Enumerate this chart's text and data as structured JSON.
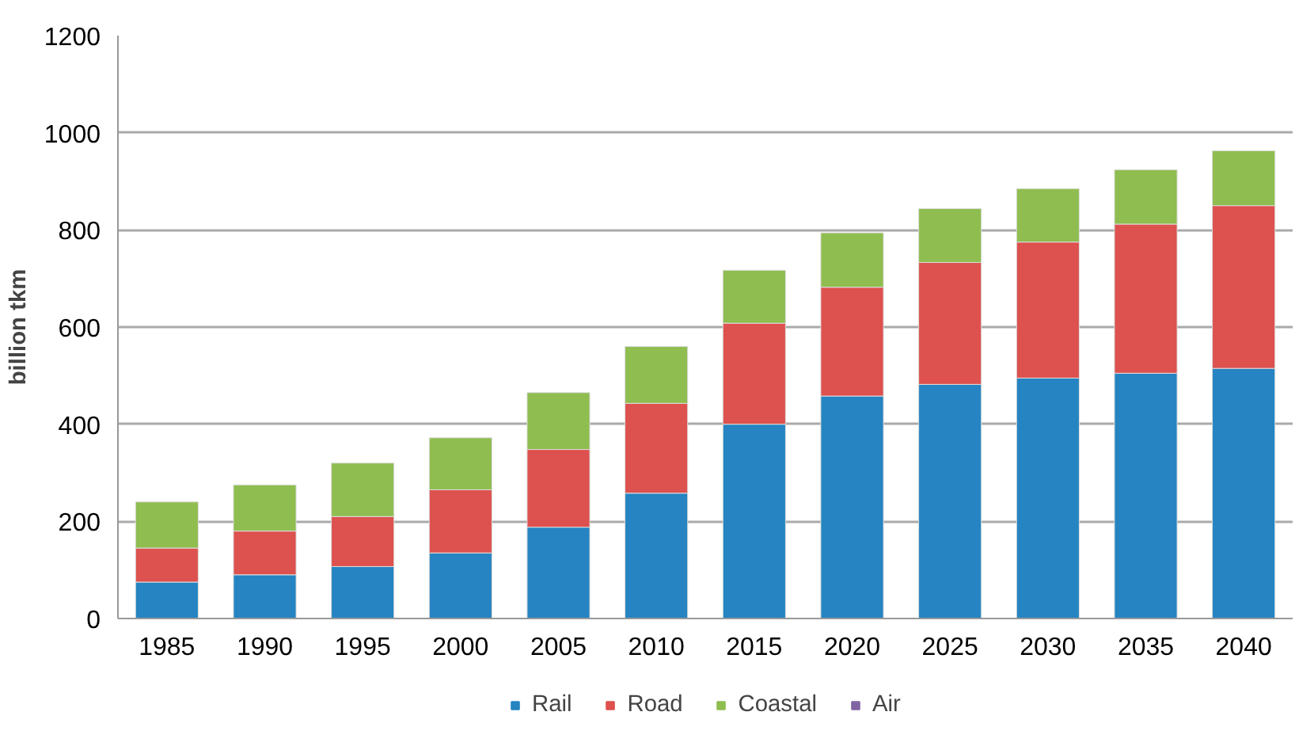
{
  "chart_data": {
    "type": "bar",
    "stacked": true,
    "ylabel": "billion tkm",
    "categories": [
      "1985",
      "1990",
      "1995",
      "2000",
      "2005",
      "2010",
      "2015",
      "2020",
      "2025",
      "2030",
      "2035",
      "2040"
    ],
    "series": [
      {
        "name": "Rail",
        "color": "#2584c1",
        "values": [
          75,
          90,
          107,
          135,
          188,
          258,
          400,
          458,
          482,
          495,
          505,
          515
        ]
      },
      {
        "name": "Road",
        "color": "#dd514e",
        "values": [
          70,
          90,
          103,
          130,
          160,
          185,
          208,
          224,
          251,
          280,
          307,
          335
        ]
      },
      {
        "name": "Coastal",
        "color": "#8fbd50",
        "values": [
          95,
          95,
          110,
          107,
          117,
          117,
          109,
          112,
          111,
          110,
          112,
          113
        ]
      },
      {
        "name": "Air",
        "color": "#8064a2",
        "values": [
          null,
          null,
          null,
          null,
          null,
          null,
          null,
          null,
          null,
          null,
          null,
          null
        ]
      }
    ],
    "ylim": [
      0,
      1200
    ],
    "yticks": [
      0,
      200,
      400,
      600,
      800,
      1000,
      1200
    ],
    "grid": "y",
    "legend": "bottom"
  }
}
